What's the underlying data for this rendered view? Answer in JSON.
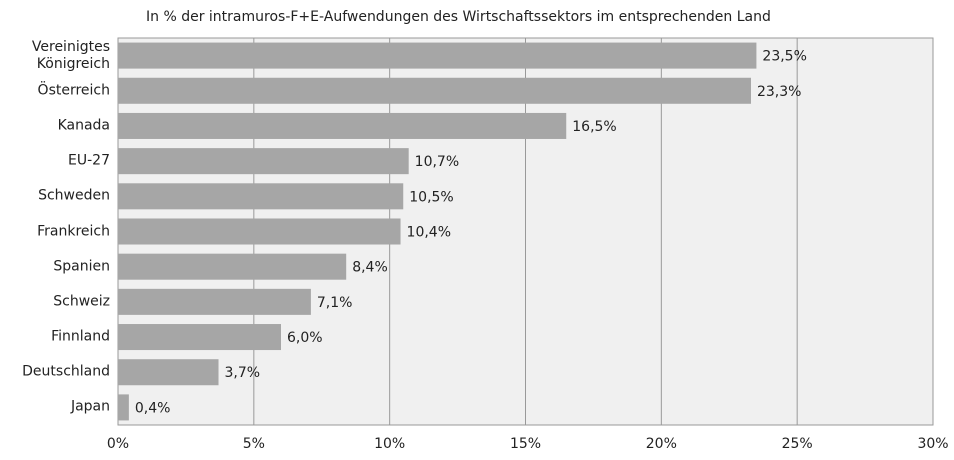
{
  "chart_data": {
    "type": "bar",
    "orientation": "horizontal",
    "title": "In % der intramuros-F+E-Aufwendungen des Wirtschaftssektors im entsprechenden Land",
    "categories": [
      "Vereinigtes Königreich",
      "Österreich",
      "Kanada",
      "EU-27",
      "Schweden",
      "Frankreich",
      "Spanien",
      "Schweiz",
      "Finnland",
      "Deutschland",
      "Japan"
    ],
    "values": [
      23.5,
      23.3,
      16.5,
      10.7,
      10.5,
      10.4,
      8.4,
      7.1,
      6.0,
      3.7,
      0.4
    ],
    "value_labels": [
      "23,5%",
      "23,3%",
      "16,5%",
      "10,7%",
      "10,5%",
      "10,4%",
      "8,4%",
      "7,1%",
      "6,0%",
      "3,7%",
      "0,4%"
    ],
    "color": "#a6a6a6",
    "xlim": [
      0,
      30
    ],
    "xticks": [
      {
        "value": 0,
        "label": "0%"
      },
      {
        "value": 5,
        "label": "5%"
      },
      {
        "value": 10,
        "label": "10%"
      },
      {
        "value": 15,
        "label": "15%"
      },
      {
        "value": 20,
        "label": "20%"
      },
      {
        "value": 25,
        "label": "25%"
      },
      {
        "value": 30,
        "label": "30%"
      }
    ],
    "grid": true
  }
}
